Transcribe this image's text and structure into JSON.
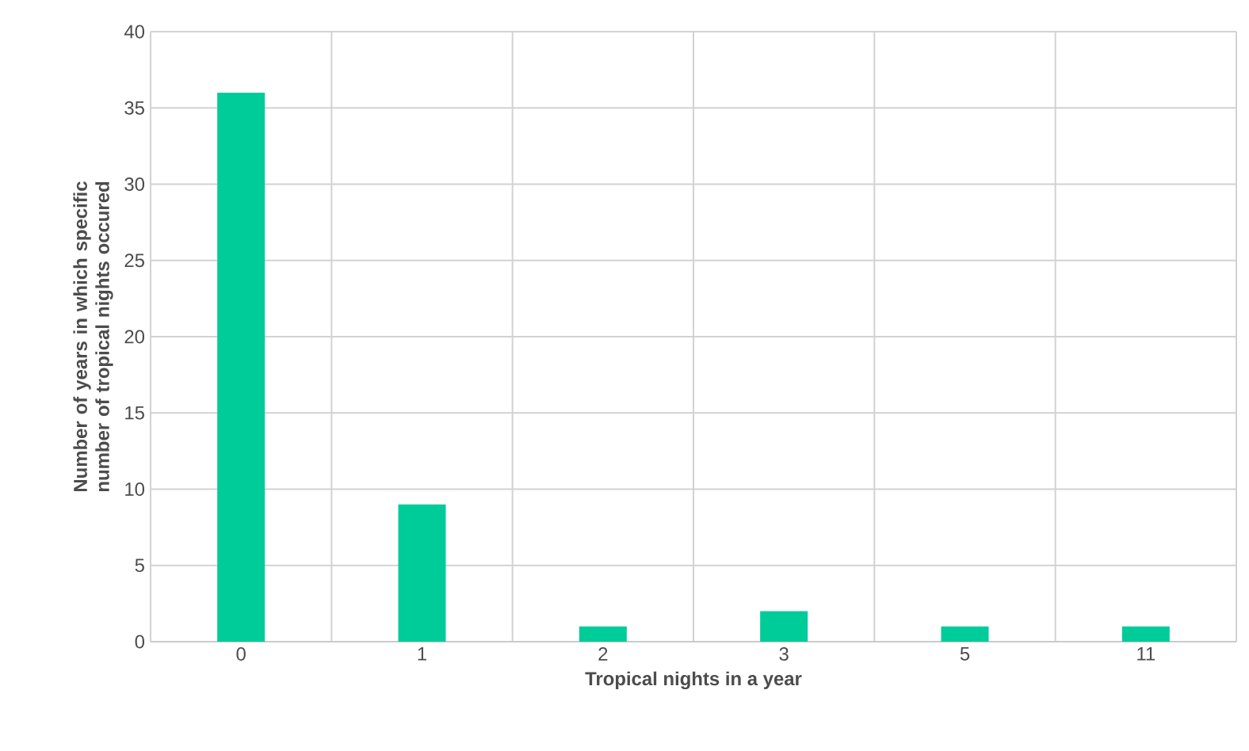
{
  "chart_data": {
    "type": "bar",
    "xlabel": "Tropical nights in a year",
    "ylabel": "Number of years in which specific number of tropical nights occured",
    "categories": [
      "0",
      "1",
      "2",
      "3",
      "5",
      "11"
    ],
    "values": [
      36,
      9,
      1,
      2,
      1,
      1
    ],
    "color": "#00cc99",
    "ylim": [
      0,
      40
    ],
    "yticks": [
      0,
      5,
      10,
      15,
      20,
      25,
      30,
      35,
      40
    ],
    "grid": true
  }
}
